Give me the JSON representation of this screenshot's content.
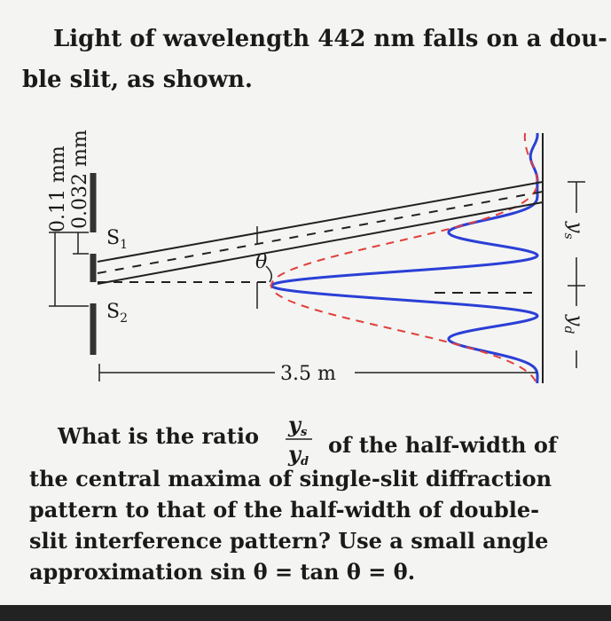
{
  "intro": [
    "Light of wavelength 442 nm falls on a dou-",
    "ble slit, as shown."
  ],
  "diagram": {
    "outer_width": "0.11 mm",
    "slit_width": "0.032 mm",
    "slit1": {
      "base": "S",
      "sub": "1"
    },
    "slit2": {
      "base": "S",
      "sub": "2"
    },
    "angle": "θ",
    "distance": "3.5 m",
    "ys": {
      "base": "y",
      "sub": "s"
    },
    "yd": {
      "base": "y",
      "sub": "d"
    }
  },
  "question": {
    "lead": "What is the ratio",
    "fraction": {
      "num": {
        "base": "y",
        "sub": "s"
      },
      "den": {
        "base": "y",
        "sub": "d"
      }
    },
    "tail": "of the half-width of",
    "lines": [
      "the central maxima of single-slit diffraction",
      "pattern to that of the half-width of double-",
      "slit interference pattern?  Use a small angle",
      "approximation sin θ = tan θ = θ."
    ]
  }
}
